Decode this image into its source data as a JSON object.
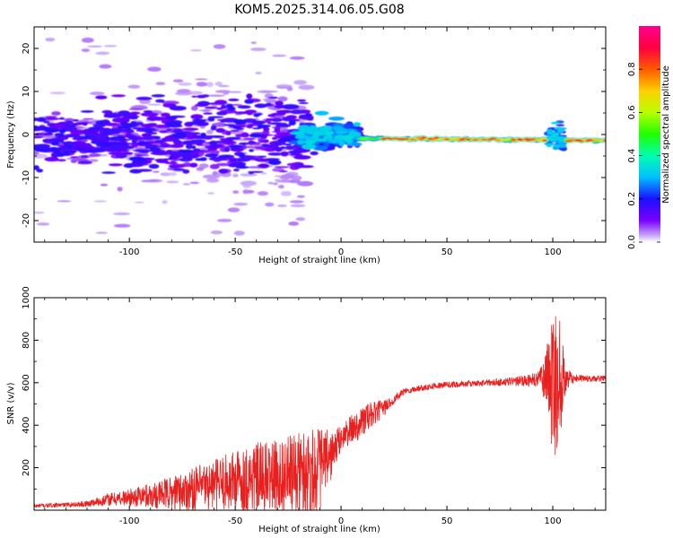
{
  "title": "KOM5.2025.314.06.05.G08",
  "colors": {
    "snr_line": "#e8201f",
    "frame": "#000000",
    "background": "#ffffff"
  },
  "chart_data": [
    {
      "type": "heatmap",
      "xlabel": "Height of straight line (km)",
      "ylabel": "Frequency (Hz)",
      "xlim": [
        -145,
        125
      ],
      "ylim": [
        -25,
        25
      ],
      "xticks": [
        -100,
        -50,
        0,
        50,
        100
      ],
      "yticks": [
        -20,
        -10,
        0,
        10,
        20
      ],
      "colorbar": {
        "label": "Normalized spectral amplitude",
        "range": [
          0,
          1
        ],
        "ticks": [
          0.0,
          0.2,
          0.4,
          0.6,
          0.8
        ],
        "tick_labels": [
          "0.0",
          "0.2",
          "0.4",
          "0.6",
          "0.8"
        ],
        "colormap": "rainbow (violet → blue → cyan → green → yellow → red → magenta)"
      },
      "description_points": [
        {
          "x": -120,
          "y_range": [
            -8,
            4
          ],
          "amplitude": 0.1
        },
        {
          "x": -80,
          "y_range": [
            -6,
            6
          ],
          "amplitude": 0.15
        },
        {
          "x": -50,
          "y_range": [
            -5,
            5
          ],
          "amplitude": 0.15
        },
        {
          "x": -20,
          "y_range": [
            -3,
            3
          ],
          "amplitude": 0.2
        },
        {
          "x": 0,
          "y_range": [
            -1,
            1
          ],
          "amplitude": 0.35
        },
        {
          "x": 30,
          "y_range": [
            -1.5,
            -0.5
          ],
          "amplitude": 0.75
        },
        {
          "x": 80,
          "y_range": [
            -1.8,
            -0.8
          ],
          "amplitude": 0.75
        },
        {
          "x": 102,
          "y_range": [
            -3,
            1
          ],
          "amplitude": 0.3
        },
        {
          "x": 120,
          "y_range": [
            -1.8,
            -0.8
          ],
          "amplitude": 0.6
        }
      ]
    },
    {
      "type": "line",
      "xlabel": "Height of straight line (km)",
      "ylabel": "SNR (v/v)",
      "xlim": [
        -145,
        125
      ],
      "ylim": [
        0,
        1000
      ],
      "xticks": [
        -100,
        -50,
        0,
        50,
        100
      ],
      "yticks": [
        200,
        400,
        600,
        800,
        1000
      ],
      "series": [
        {
          "name": "SNR",
          "color": "#e8201f",
          "x": [
            -145,
            -130,
            -120,
            -110,
            -100,
            -90,
            -80,
            -70,
            -60,
            -50,
            -40,
            -30,
            -20,
            -15,
            -10,
            -5,
            0,
            5,
            10,
            15,
            20,
            25,
            30,
            40,
            50,
            60,
            70,
            80,
            90,
            95,
            98,
            100,
            102,
            104,
            106,
            110,
            115,
            120,
            125
          ],
          "mean": [
            20,
            25,
            30,
            50,
            60,
            70,
            80,
            100,
            120,
            140,
            150,
            160,
            170,
            180,
            200,
            250,
            340,
            380,
            420,
            450,
            480,
            520,
            560,
            580,
            590,
            595,
            600,
            605,
            610,
            620,
            620,
            600,
            600,
            610,
            615,
            620,
            620,
            618,
            620
          ],
          "spread": [
            10,
            10,
            15,
            30,
            40,
            60,
            80,
            100,
            120,
            150,
            170,
            170,
            200,
            220,
            200,
            120,
            60,
            70,
            80,
            60,
            40,
            20,
            15,
            15,
            15,
            15,
            15,
            20,
            30,
            60,
            200,
            400,
            350,
            250,
            60,
            20,
            15,
            15,
            15
          ]
        }
      ]
    }
  ]
}
